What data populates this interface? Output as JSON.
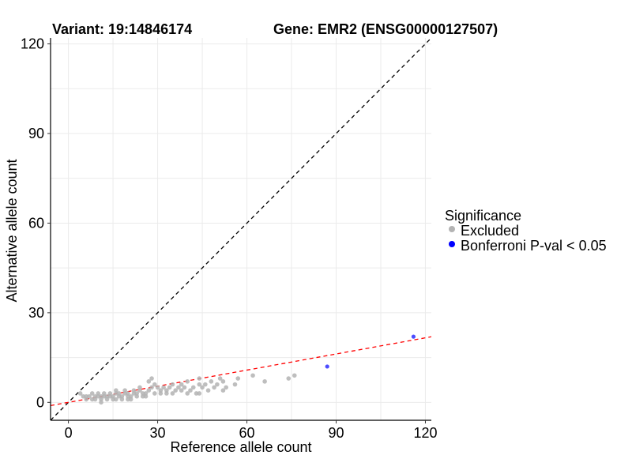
{
  "chart_data": {
    "type": "scatter",
    "title_left": "Variant: 19:14846174",
    "title_right": "Gene: EMR2 (ENSG00000127507)",
    "xlabel": "Reference allele count",
    "ylabel": "Alternative allele count",
    "xlim": [
      -6,
      122
    ],
    "ylim": [
      -6,
      122
    ],
    "x_ticks": [
      "0",
      "30",
      "60",
      "90",
      "120"
    ],
    "y_ticks": [
      "0",
      "30",
      "60",
      "90",
      "120"
    ],
    "grid": true,
    "legend_placement": "right",
    "legend": {
      "title": "Significance",
      "items": [
        {
          "label": "Excluded",
          "color": "#b3b3b3"
        },
        {
          "label": "Bonferroni P-val < 0.05",
          "color": "#0000ff"
        }
      ]
    },
    "identity_line": {
      "slope": 1,
      "intercept": 0,
      "color": "#000000"
    },
    "fit_line": {
      "slope": 0.18,
      "intercept": 0,
      "color": "#ff0000"
    },
    "series": [
      {
        "name": "Excluded",
        "color": "#b3b3b3",
        "points": [
          [
            4,
            3
          ],
          [
            5,
            2
          ],
          [
            6,
            1
          ],
          [
            6,
            2
          ],
          [
            7,
            2
          ],
          [
            8,
            1
          ],
          [
            8,
            3
          ],
          [
            9,
            2
          ],
          [
            9,
            1
          ],
          [
            10,
            2
          ],
          [
            10,
            3
          ],
          [
            11,
            1
          ],
          [
            11,
            2
          ],
          [
            12,
            2
          ],
          [
            12,
            3
          ],
          [
            13,
            1
          ],
          [
            13,
            2
          ],
          [
            14,
            2
          ],
          [
            14,
            3
          ],
          [
            15,
            1
          ],
          [
            15,
            2
          ],
          [
            16,
            3
          ],
          [
            16,
            4
          ],
          [
            17,
            2
          ],
          [
            17,
            3
          ],
          [
            18,
            2
          ],
          [
            18,
            1
          ],
          [
            19,
            3
          ],
          [
            19,
            4
          ],
          [
            20,
            2
          ],
          [
            20,
            3
          ],
          [
            21,
            1
          ],
          [
            21,
            2
          ],
          [
            22,
            3
          ],
          [
            22,
            4
          ],
          [
            23,
            2
          ],
          [
            23,
            3
          ],
          [
            24,
            4
          ],
          [
            24,
            5
          ],
          [
            25,
            3
          ],
          [
            25,
            2
          ],
          [
            26,
            3
          ],
          [
            27,
            4
          ],
          [
            27,
            7
          ],
          [
            28,
            8
          ],
          [
            28,
            5
          ],
          [
            29,
            6
          ],
          [
            29,
            3
          ],
          [
            30,
            5
          ],
          [
            31,
            3
          ],
          [
            31,
            4
          ],
          [
            32,
            5
          ],
          [
            33,
            3
          ],
          [
            33,
            4
          ],
          [
            34,
            5
          ],
          [
            35,
            6
          ],
          [
            35,
            3
          ],
          [
            36,
            4
          ],
          [
            37,
            5
          ],
          [
            38,
            4
          ],
          [
            38,
            6
          ],
          [
            39,
            5
          ],
          [
            40,
            3
          ],
          [
            40,
            7
          ],
          [
            41,
            4
          ],
          [
            42,
            5
          ],
          [
            43,
            3
          ],
          [
            44,
            6
          ],
          [
            44,
            8
          ],
          [
            45,
            5
          ],
          [
            46,
            6
          ],
          [
            47,
            4
          ],
          [
            48,
            7
          ],
          [
            49,
            5
          ],
          [
            50,
            6
          ],
          [
            51,
            8
          ],
          [
            52,
            4
          ],
          [
            52,
            7
          ],
          [
            53,
            5
          ],
          [
            56,
            6
          ],
          [
            57,
            8
          ],
          [
            62,
            9
          ],
          [
            66,
            7
          ],
          [
            74,
            8
          ],
          [
            76,
            9
          ],
          [
            11,
            0
          ],
          [
            16,
            1
          ],
          [
            20,
            1
          ],
          [
            26,
            2
          ],
          [
            44,
            3
          ]
        ]
      },
      {
        "name": "Bonferroni P-val < 0.05",
        "color": "#0000ff",
        "points": [
          [
            87,
            12
          ],
          [
            116,
            22
          ]
        ]
      }
    ]
  }
}
